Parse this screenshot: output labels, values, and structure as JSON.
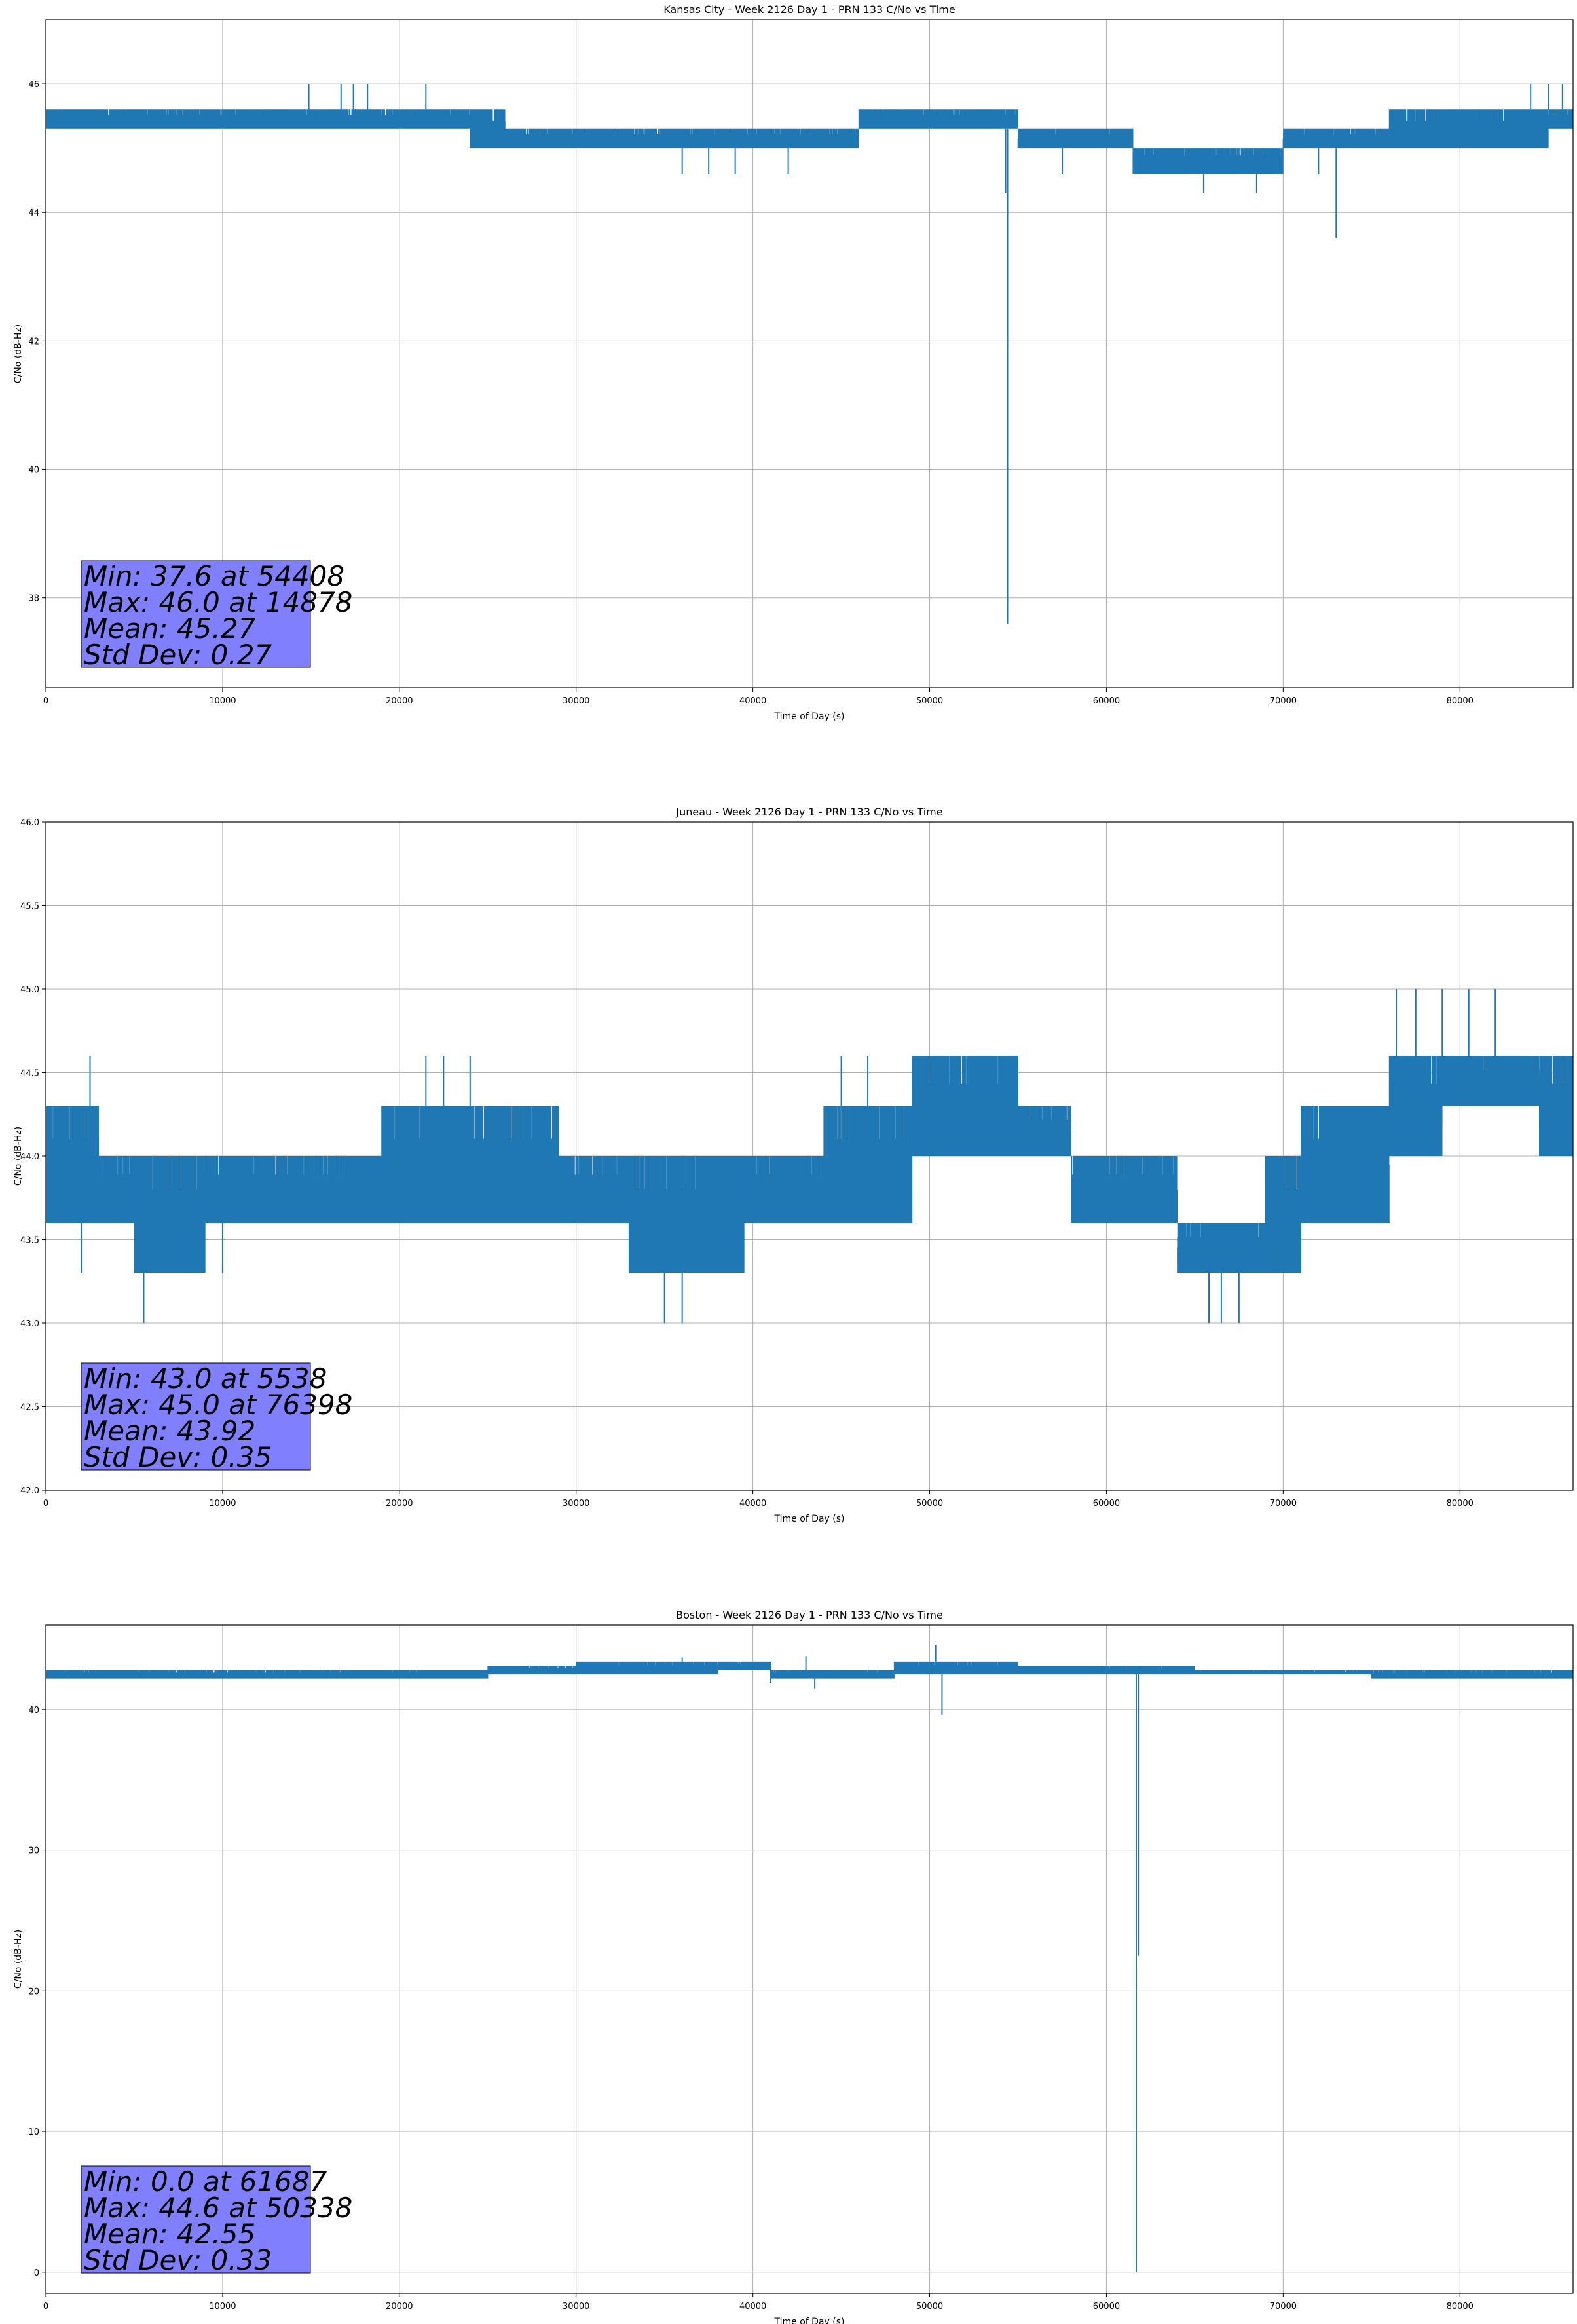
{
  "figure": {
    "series_color": "#1f77b4",
    "grid_color": "#b0b0b0",
    "stats_box_color": "#8080ff"
  },
  "chart_data": [
    {
      "type": "line",
      "title": "Kansas City - Week 2126 Day 1 - PRN 133 C/No vs Time",
      "xlabel": "Time of Day (s)",
      "ylabel": "C/No (dB-Hz)",
      "xlim": [
        0,
        86400
      ],
      "ylim": [
        36.6,
        47.0
      ],
      "xticks": [
        0,
        10000,
        20000,
        30000,
        40000,
        50000,
        60000,
        70000,
        80000
      ],
      "yticks": [
        38,
        40,
        42,
        44,
        46
      ],
      "ytick_labels": [
        "38",
        "40",
        "42",
        "44",
        "46"
      ],
      "grid": true,
      "summary": {
        "min": 37.6,
        "min_time": 54408,
        "max": 46.0,
        "max_time": 14878,
        "mean": 45.27,
        "std_dev": 0.27
      },
      "band_profile": {
        "x": [
          0,
          3500,
          9000,
          14000,
          22000,
          24000,
          26000,
          34000,
          40000,
          43500,
          46000,
          54000,
          55000,
          60000,
          61500,
          67000,
          70000,
          76000,
          85000,
          86400
        ],
        "low": [
          45.3,
          45.3,
          45.3,
          45.3,
          45.3,
          45.0,
          45.0,
          45.0,
          45.0,
          45.0,
          45.3,
          45.3,
          45.0,
          45.0,
          44.6,
          44.6,
          45.0,
          45.0,
          45.3,
          45.3
        ],
        "high": [
          45.6,
          45.6,
          45.6,
          45.6,
          45.6,
          45.6,
          45.3,
          45.3,
          45.3,
          45.3,
          45.6,
          45.6,
          45.3,
          45.3,
          45.0,
          45.0,
          45.3,
          45.6,
          45.6,
          46.0
        ]
      },
      "spikes_up": [
        [
          14878,
          46.0
        ],
        [
          16700,
          46.0
        ],
        [
          17400,
          46.0
        ],
        [
          18200,
          46.0
        ],
        [
          21500,
          46.0
        ],
        [
          84000,
          46.0
        ],
        [
          85000,
          46.0
        ],
        [
          85800,
          46.0
        ]
      ],
      "spikes_down": [
        [
          54408,
          37.6
        ],
        [
          54300,
          44.3
        ],
        [
          73000,
          43.6
        ],
        [
          65500,
          44.3
        ],
        [
          68500,
          44.3
        ],
        [
          36000,
          44.6
        ],
        [
          37500,
          44.6
        ],
        [
          39000,
          44.6
        ],
        [
          42000,
          44.6
        ],
        [
          57500,
          44.6
        ],
        [
          62000,
          44.6
        ],
        [
          72000,
          44.6
        ]
      ],
      "stats_lines": [
        "Min: 37.6 at 54408",
        "Max: 46.0 at 14878",
        "Mean: 45.27",
        "Std Dev: 0.27"
      ]
    },
    {
      "type": "line",
      "title": "Juneau - Week 2126 Day 1 - PRN 133 C/No vs Time",
      "xlabel": "Time of Day (s)",
      "ylabel": "C/No (dB-Hz)",
      "xlim": [
        0,
        86400
      ],
      "ylim": [
        42.0,
        46.0
      ],
      "xticks": [
        0,
        10000,
        20000,
        30000,
        40000,
        50000,
        60000,
        70000,
        80000
      ],
      "yticks": [
        42.0,
        42.5,
        43.0,
        43.5,
        44.0,
        44.5,
        45.0,
        45.5,
        46.0
      ],
      "ytick_labels": [
        "42.0",
        "42.5",
        "43.0",
        "43.5",
        "44.0",
        "44.5",
        "45.0",
        "45.5",
        "46.0"
      ],
      "grid": true,
      "summary": {
        "min": 43.0,
        "min_time": 5538,
        "max": 45.0,
        "max_time": 76398,
        "mean": 43.92,
        "std_dev": 0.35
      },
      "band_profile": {
        "x": [
          0,
          3000,
          5000,
          7000,
          9000,
          16000,
          19000,
          26000,
          29000,
          33000,
          39500,
          44000,
          49000,
          52000,
          55000,
          58000,
          59500,
          64000,
          65500,
          69000,
          71000,
          76000,
          79000,
          84500,
          86400
        ],
        "low": [
          43.6,
          43.6,
          43.3,
          43.3,
          43.6,
          43.6,
          43.6,
          43.6,
          43.6,
          43.3,
          43.6,
          43.6,
          44.0,
          44.0,
          44.0,
          43.6,
          43.6,
          43.3,
          43.3,
          43.3,
          43.6,
          44.0,
          44.3,
          44.0,
          44.0
        ],
        "high": [
          44.3,
          44.0,
          44.0,
          44.0,
          44.0,
          44.0,
          44.3,
          44.3,
          44.0,
          44.0,
          44.0,
          44.3,
          44.6,
          44.6,
          44.3,
          44.0,
          44.0,
          43.6,
          43.6,
          44.0,
          44.3,
          44.6,
          44.6,
          44.6,
          44.3
        ]
      },
      "spikes_up": [
        [
          2500,
          44.6
        ],
        [
          21500,
          44.6
        ],
        [
          22500,
          44.6
        ],
        [
          24000,
          44.6
        ],
        [
          45000,
          44.6
        ],
        [
          46500,
          44.6
        ],
        [
          76398,
          45.0
        ],
        [
          77500,
          45.0
        ],
        [
          79000,
          45.0
        ],
        [
          80500,
          45.0
        ],
        [
          82000,
          45.0
        ]
      ],
      "spikes_down": [
        [
          5538,
          43.0
        ],
        [
          35000,
          43.0
        ],
        [
          36000,
          43.0
        ],
        [
          65800,
          43.0
        ],
        [
          66500,
          43.0
        ],
        [
          67500,
          43.0
        ],
        [
          2000,
          43.3
        ],
        [
          10000,
          43.3
        ],
        [
          38000,
          43.3
        ]
      ],
      "stats_lines": [
        "Min: 43.0 at 5538",
        "Max: 45.0 at 76398",
        "Mean: 43.92",
        "Std Dev: 0.35"
      ]
    },
    {
      "type": "line",
      "title": "Boston - Week 2126 Day 1 - PRN 133 C/No vs Time",
      "xlabel": "Time of Day (s)",
      "ylabel": "C/No (dB-Hz)",
      "xlim": [
        0,
        86400
      ],
      "ylim": [
        -1.5,
        46.0
      ],
      "xticks": [
        0,
        10000,
        20000,
        30000,
        40000,
        50000,
        60000,
        70000,
        80000
      ],
      "yticks": [
        0,
        10,
        20,
        30,
        40
      ],
      "ytick_labels": [
        "0",
        "10",
        "20",
        "30",
        "40"
      ],
      "grid": true,
      "summary": {
        "min": 0.0,
        "min_time": 61687,
        "max": 44.6,
        "max_time": 50338,
        "mean": 42.55,
        "std_dev": 0.33
      },
      "band_profile": {
        "x": [
          0,
          10000,
          20000,
          25000,
          30000,
          38000,
          41000,
          45000,
          48000,
          55000,
          61500,
          65000,
          75000,
          86400
        ],
        "low": [
          42.2,
          42.2,
          42.2,
          42.5,
          42.5,
          42.8,
          42.2,
          42.2,
          42.5,
          42.5,
          42.5,
          42.5,
          42.2,
          42.2
        ],
        "high": [
          42.8,
          42.8,
          42.8,
          43.1,
          43.4,
          43.4,
          42.8,
          42.8,
          43.4,
          43.1,
          43.1,
          42.8,
          42.8,
          42.8
        ]
      },
      "spikes_up": [
        [
          50338,
          44.6
        ],
        [
          43000,
          43.8
        ],
        [
          36000,
          43.7
        ]
      ],
      "spikes_down": [
        [
          61687,
          0.0
        ],
        [
          61800,
          22.5
        ],
        [
          50700,
          39.6
        ],
        [
          43500,
          41.5
        ],
        [
          41000,
          41.9
        ]
      ],
      "stats_lines": [
        "Min: 0.0 at 61687",
        "Max: 44.6 at 50338",
        "Mean: 42.55",
        "Std Dev: 0.33"
      ]
    }
  ]
}
